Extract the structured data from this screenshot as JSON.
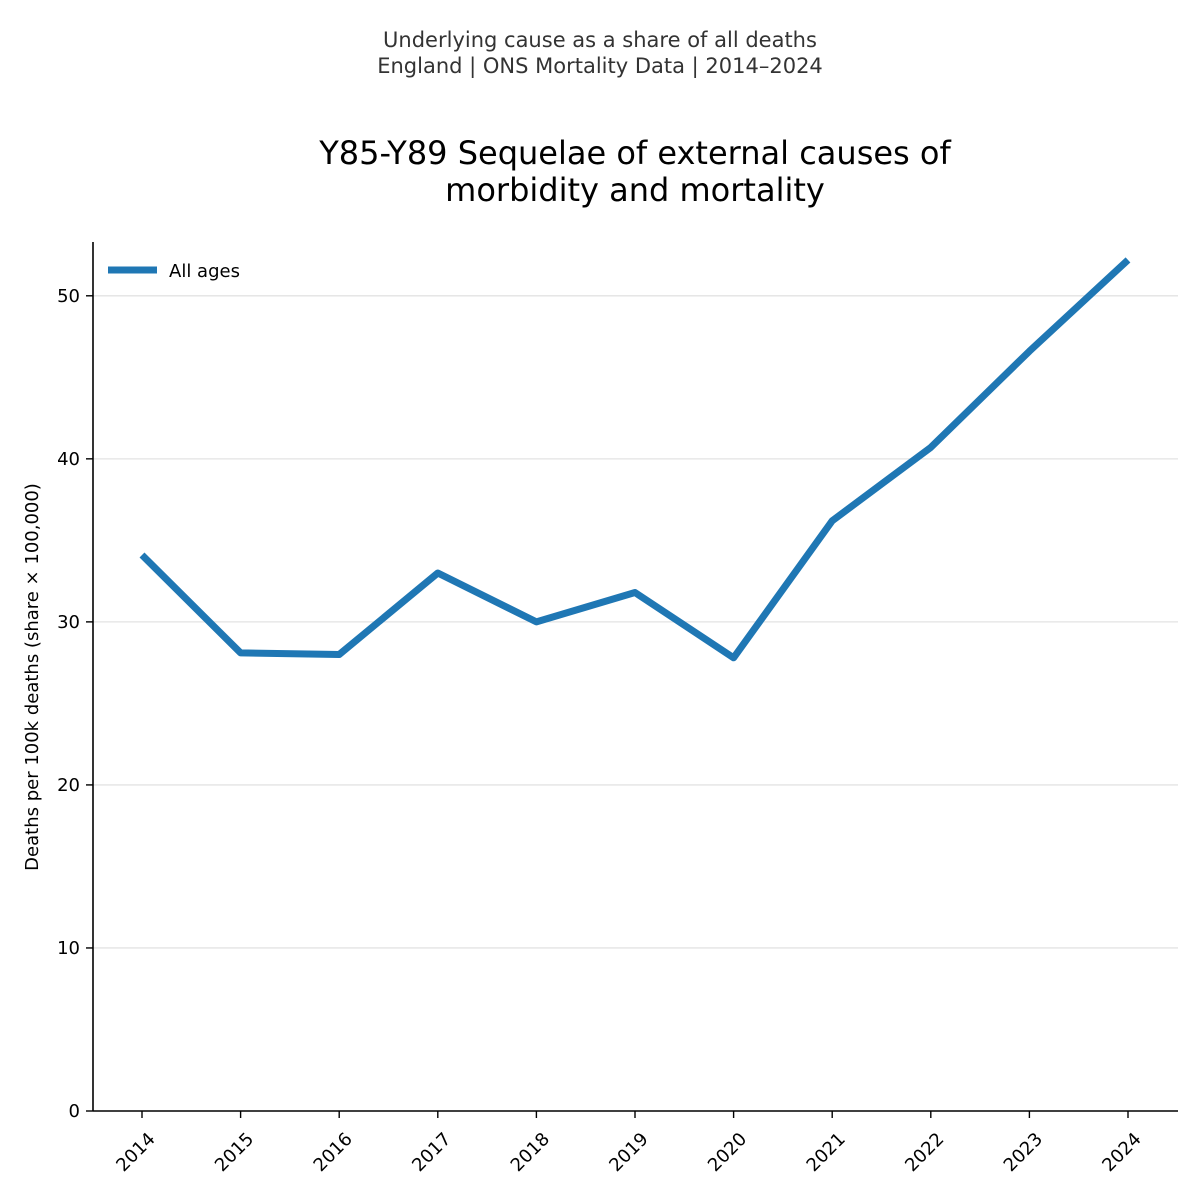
{
  "header": {
    "suptitle_line1": "Underlying cause as a share of all deaths",
    "suptitle_line2": "England | ONS Mortality Data | 2014–2024"
  },
  "chart_data": {
    "type": "line",
    "title_lines": [
      "Y85-Y89 Sequelae of external causes of",
      "morbidity and mortality"
    ],
    "xlabel": "",
    "ylabel": "Deaths per 100k deaths (share × 100,000)",
    "x": [
      "2014",
      "2015",
      "2016",
      "2017",
      "2018",
      "2019",
      "2020",
      "2021",
      "2022",
      "2023",
      "2024"
    ],
    "series": [
      {
        "name": "All ages",
        "color": "#1f77b4",
        "values": [
          34.1,
          28.1,
          28.0,
          33.0,
          30.0,
          31.8,
          27.8,
          36.2,
          40.7,
          46.6,
          52.2
        ]
      }
    ],
    "ylim": [
      0,
      53.3
    ],
    "yticks": [
      0,
      10,
      20,
      30,
      40,
      50
    ],
    "grid": "y",
    "legend_position": "top-left"
  }
}
